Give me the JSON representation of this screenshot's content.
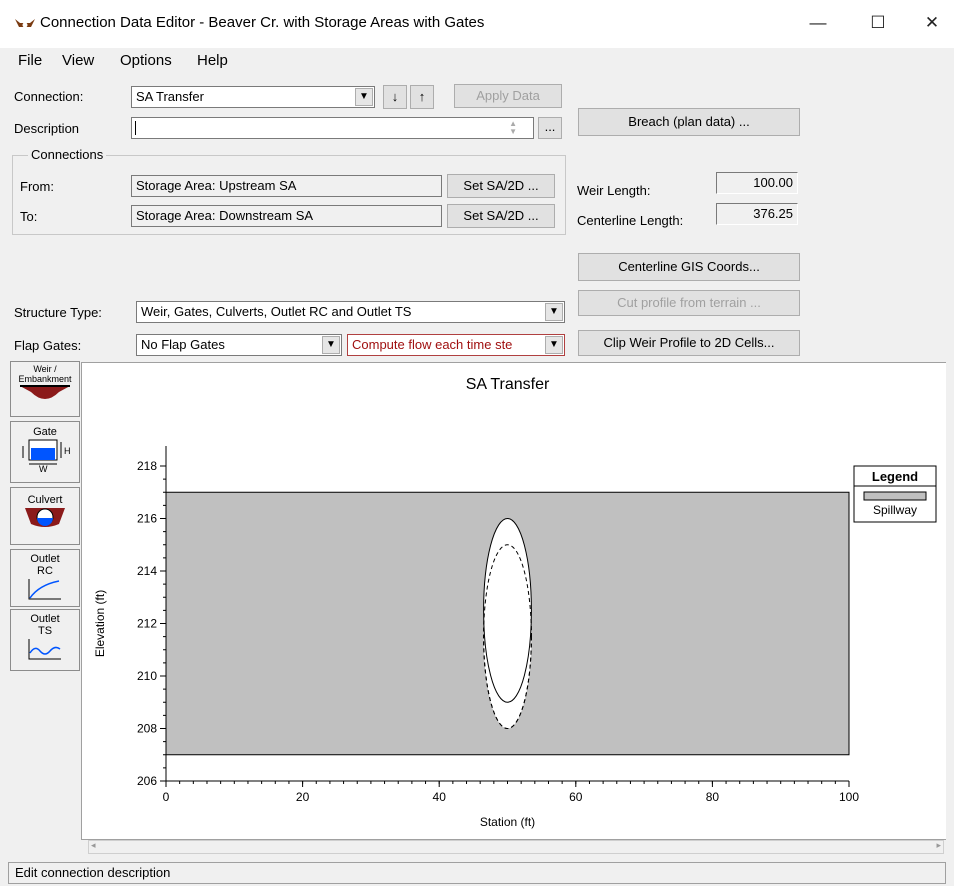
{
  "window": {
    "title": "Connection Data Editor - Beaver Cr. with Storage Areas with Gates",
    "minimize": "—",
    "maximize": "☐",
    "close": "✕"
  },
  "menu": [
    "File",
    "View",
    "Options",
    "Help"
  ],
  "connection": {
    "label": "Connection:",
    "value": "SA Transfer",
    "apply_label": "Apply Data",
    "down_arrow": "↓",
    "up_arrow": "↑"
  },
  "description": {
    "label": "Description",
    "value": "",
    "more": "..."
  },
  "breach_button": "Breach (plan data) ...",
  "connections_group": {
    "title": "Connections",
    "from_label": "From:",
    "from_value": "Storage Area: Upstream SA",
    "to_label": "To:",
    "to_value": "Storage Area: Downstream SA",
    "set_button": "Set SA/2D ..."
  },
  "weir_length": {
    "label": "Weir Length:",
    "value": "100.00"
  },
  "centerline_length": {
    "label": "Centerline Length:",
    "value": "376.25"
  },
  "centerline_gis_button": "Centerline GIS Coords...",
  "cut_profile_button": "Cut profile from terrain ...",
  "clip_weir_button": "Clip Weir Profile to 2D Cells...",
  "structure_type": {
    "label": "Structure Type:",
    "value": "Weir, Gates, Culverts, Outlet RC and Outlet TS"
  },
  "flap_gates": {
    "label": "Flap Gates:",
    "value": "No Flap Gates",
    "compute_value": "Compute flow each time ste"
  },
  "side_buttons": [
    {
      "label": "Weir /\nEmbankment",
      "icon": "weir-icon"
    },
    {
      "label": "Gate",
      "icon": "gate-icon"
    },
    {
      "label": "Culvert",
      "icon": "culvert-icon"
    },
    {
      "label": "Outlet RC",
      "icon": "outlet-rc-icon"
    },
    {
      "label": "Outlet TS",
      "icon": "outlet-ts-icon"
    }
  ],
  "gate_icon_labels": {
    "h": "H",
    "w": "W"
  },
  "colors": {
    "spillway_fill": "#c0c0c0",
    "weir_brown": "#8b1a1a",
    "gate_blue": "#0055ff"
  },
  "status_text": "Edit connection description",
  "chart_data": {
    "type": "area",
    "title": "SA Transfer",
    "xlabel": "Station (ft)",
    "ylabel": "Elevation (ft)",
    "xlim": [
      0,
      100
    ],
    "ylim": [
      206,
      218
    ],
    "x_ticks": [
      0,
      20,
      40,
      60,
      80,
      100
    ],
    "y_ticks": [
      206,
      208,
      210,
      212,
      214,
      216,
      218
    ],
    "legend_title": "Legend",
    "legend_position": "top-right",
    "series": [
      {
        "name": "Spillway",
        "x": [
          0,
          100
        ],
        "y_low": 207,
        "y_high": 217
      }
    ],
    "culvert_solid": {
      "cx": 50,
      "cy": 212.5,
      "rx": 3.5,
      "ry": 3.5
    },
    "culvert_dashed": {
      "cx": 50,
      "cy": 211.5,
      "rx": 3.5,
      "ry": 3.5
    }
  }
}
